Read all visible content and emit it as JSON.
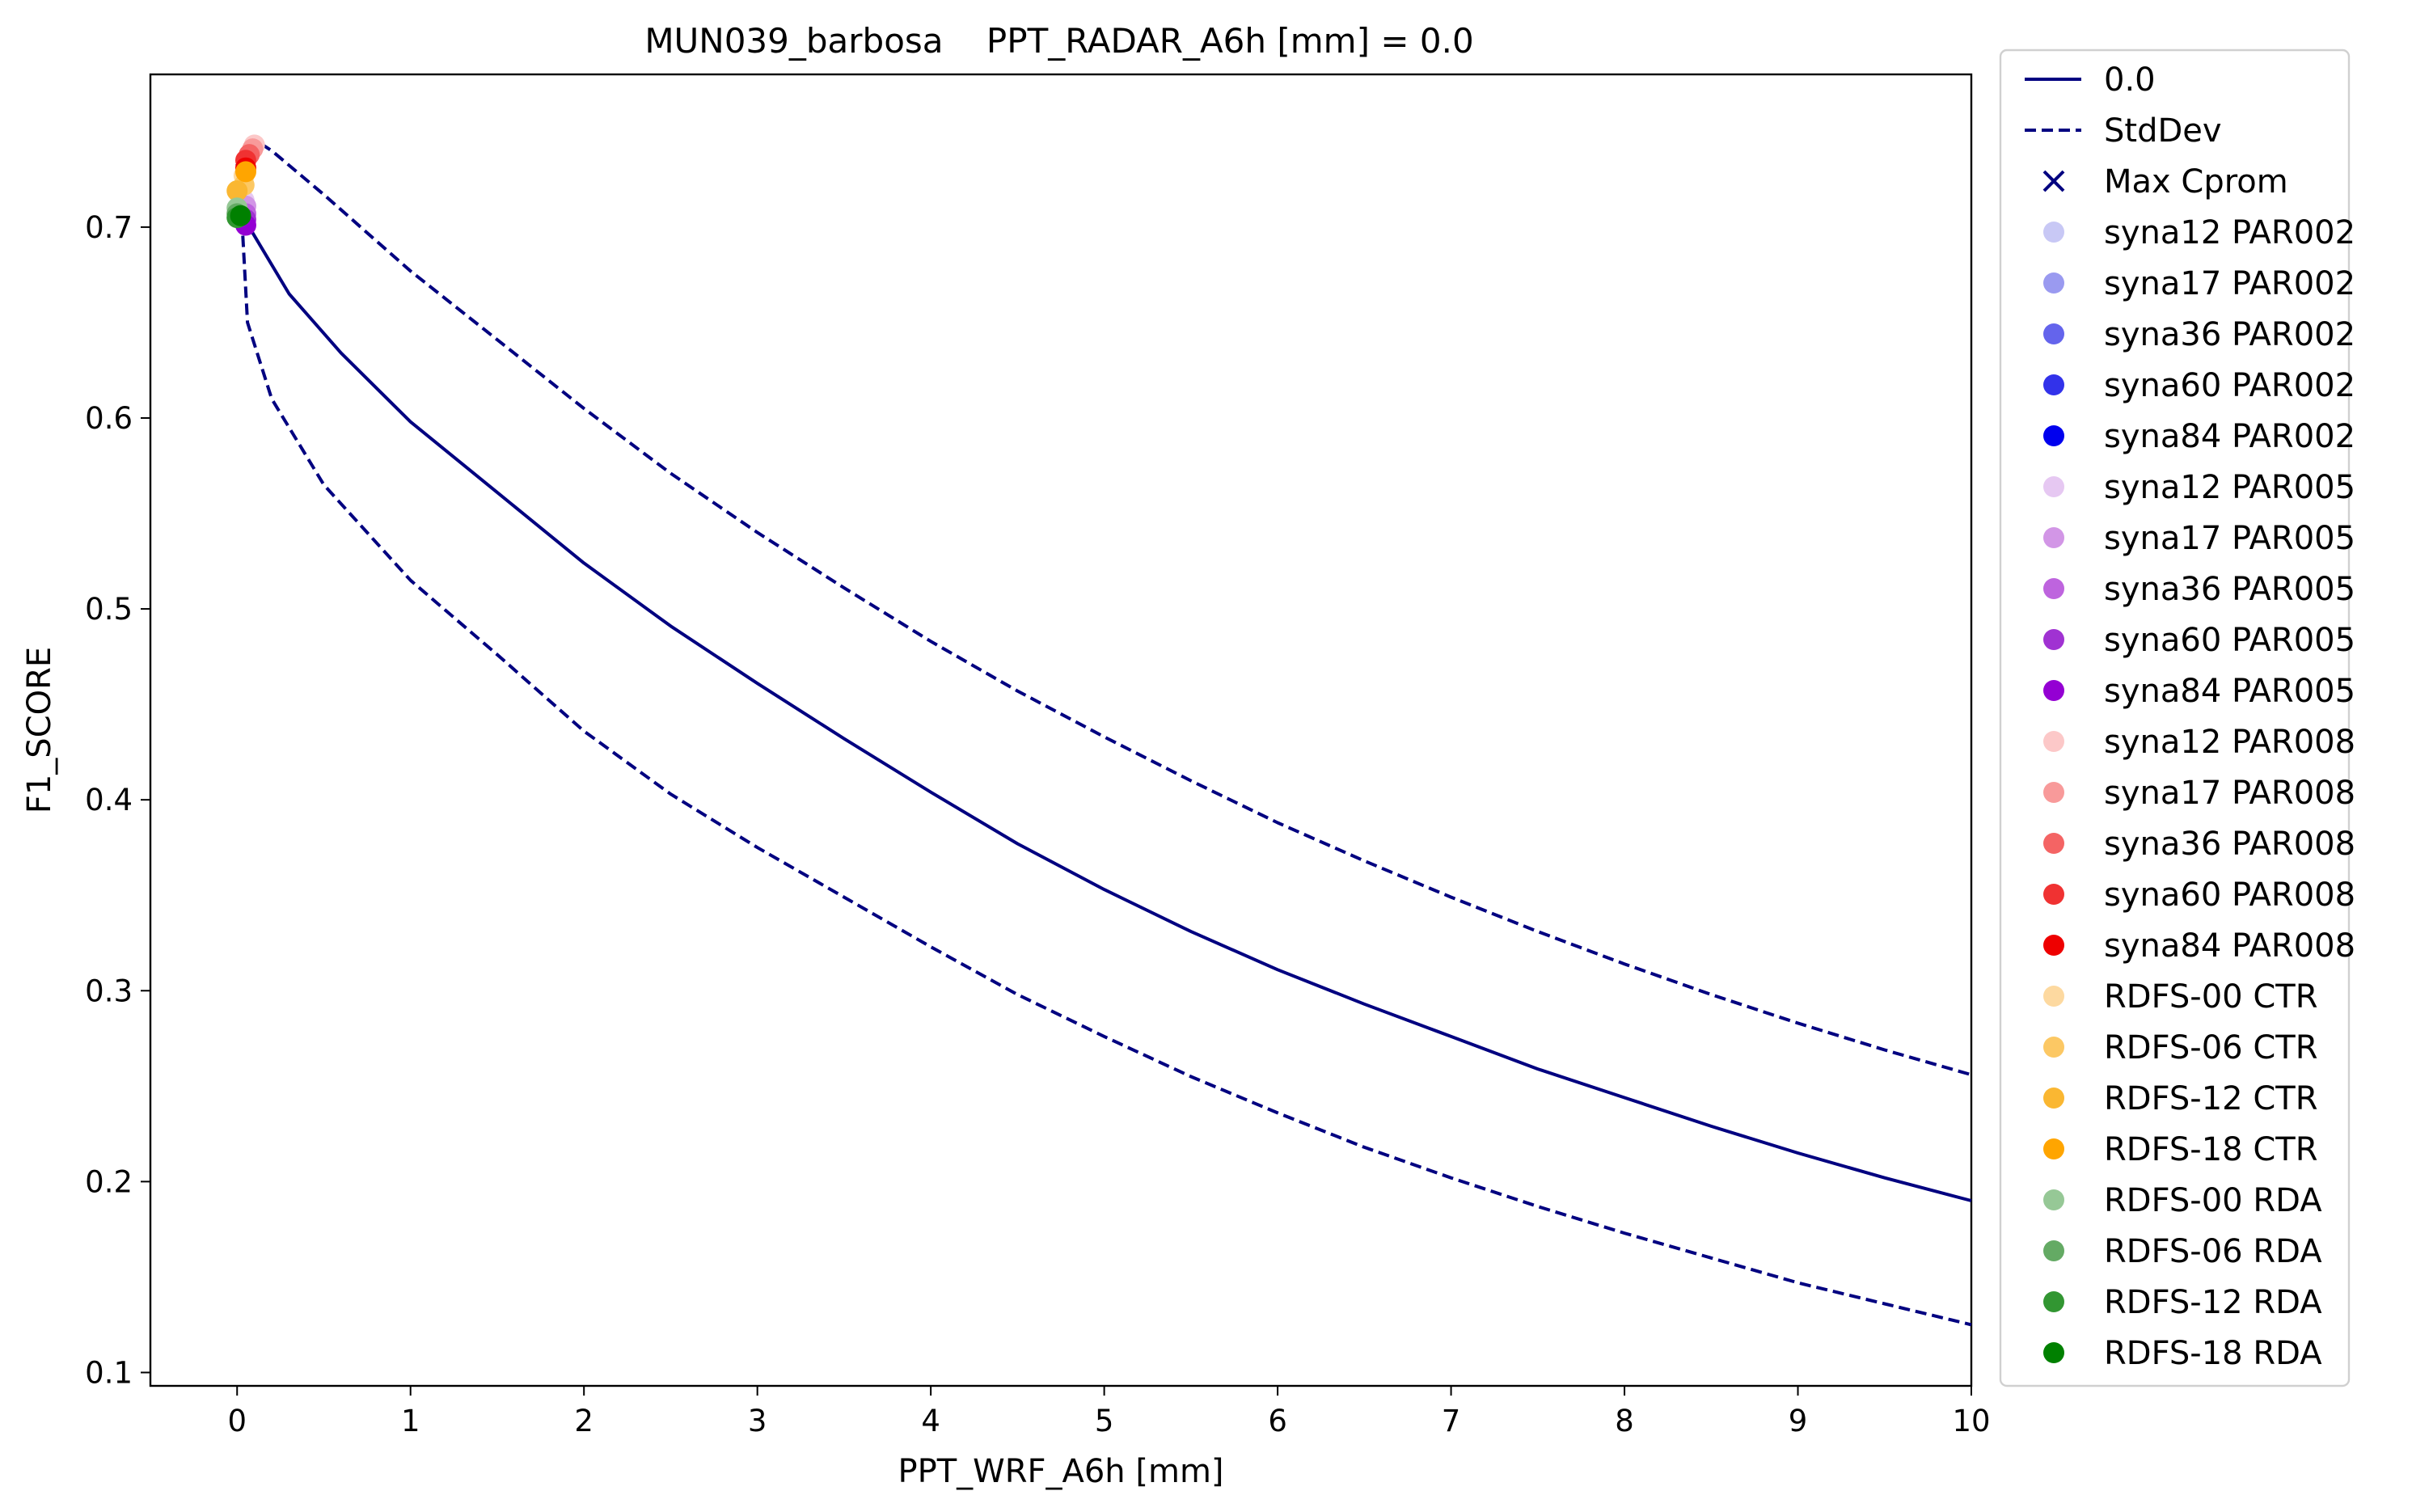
{
  "chart_data": {
    "type": "line",
    "title": "MUN039_barbosa    PPT_RADAR_A6h [mm] = 0.0",
    "xlabel": "PPT_WRF_A6h [mm]",
    "ylabel": "F1_SCORE",
    "xlim": [
      -0.5,
      10
    ],
    "ylim": [
      0.093,
      0.78
    ],
    "xticks": [
      "0",
      "1",
      "2",
      "3",
      "4",
      "5",
      "6",
      "7",
      "8",
      "9",
      "10"
    ],
    "yticks": [
      "0.1",
      "0.2",
      "0.3",
      "0.4",
      "0.5",
      "0.6",
      "0.7"
    ],
    "grid": false,
    "legend_position": "outside-right",
    "series": [
      {
        "name": "0.0",
        "style": "solid",
        "color": "#000080",
        "x": [
          0.0,
          0.05,
          0.3,
          0.6,
          1.0,
          1.5,
          2.0,
          2.5,
          3.0,
          3.5,
          4.0,
          4.5,
          5.0,
          5.5,
          6.0,
          6.5,
          7.0,
          7.5,
          8.0,
          8.5,
          9.0,
          9.5,
          10.0
        ],
        "y": [
          0.733,
          0.703,
          0.665,
          0.634,
          0.598,
          0.561,
          0.524,
          0.491,
          0.461,
          0.432,
          0.404,
          0.377,
          0.353,
          0.331,
          0.311,
          0.293,
          0.276,
          0.259,
          0.244,
          0.229,
          0.215,
          0.202,
          0.19
        ]
      },
      {
        "name": "StdDev",
        "style": "dashed",
        "color": "#000080",
        "x": [
          0.03,
          0.05,
          0.08,
          0.2,
          0.5,
          1.0,
          1.5,
          2.0,
          2.5,
          3.0,
          3.5,
          4.0,
          4.5,
          5.0,
          5.5,
          6.0,
          6.5,
          7.0,
          7.5,
          8.0,
          8.5,
          9.0,
          9.5,
          10.0
        ],
        "y": [
          0.71,
          0.745,
          0.747,
          0.74,
          0.717,
          0.677,
          0.641,
          0.605,
          0.571,
          0.54,
          0.511,
          0.483,
          0.457,
          0.433,
          0.41,
          0.388,
          0.368,
          0.349,
          0.331,
          0.314,
          0.298,
          0.283,
          0.269,
          0.256
        ]
      },
      {
        "name": "",
        "style": "dashed",
        "color": "#000080",
        "x": [
          0.0,
          0.03,
          0.06,
          0.2,
          0.5,
          1.0,
          1.5,
          2.0,
          2.5,
          3.0,
          3.5,
          4.0,
          4.5,
          5.0,
          5.5,
          6.0,
          6.5,
          7.0,
          7.5,
          8.0,
          8.5,
          9.0,
          9.5,
          10.0
        ],
        "y": [
          0.713,
          0.7,
          0.65,
          0.61,
          0.565,
          0.515,
          0.476,
          0.436,
          0.403,
          0.375,
          0.349,
          0.323,
          0.298,
          0.276,
          0.255,
          0.236,
          0.218,
          0.202,
          0.187,
          0.173,
          0.16,
          0.147,
          0.136,
          0.125
        ]
      }
    ],
    "scatter_points": [
      {
        "label": "syna12 PAR002",
        "color": "#c8c8f5",
        "x": 0.03,
        "y": 0.712
      },
      {
        "label": "syna17 PAR002",
        "color": "#9a9af0",
        "x": 0.04,
        "y": 0.708
      },
      {
        "label": "syna36 PAR002",
        "color": "#6464ec",
        "x": 0.03,
        "y": 0.706
      },
      {
        "label": "syna60 PAR002",
        "color": "#3232ea",
        "x": 0.04,
        "y": 0.704
      },
      {
        "label": "syna84 PAR002",
        "color": "#0000ee",
        "x": 0.04,
        "y": 0.703
      },
      {
        "label": "syna12 PAR005",
        "color": "#e6c8f2",
        "x": 0.04,
        "y": 0.714
      },
      {
        "label": "syna17 PAR005",
        "color": "#d296e6",
        "x": 0.05,
        "y": 0.711
      },
      {
        "label": "syna36 PAR005",
        "color": "#be64de",
        "x": 0.05,
        "y": 0.707
      },
      {
        "label": "syna60 PAR005",
        "color": "#a032d2",
        "x": 0.05,
        "y": 0.704
      },
      {
        "label": "syna84 PAR005",
        "color": "#9400d3",
        "x": 0.05,
        "y": 0.701
      },
      {
        "label": "syna12 PAR008",
        "color": "#fcc8c8",
        "x": 0.1,
        "y": 0.743
      },
      {
        "label": "syna17 PAR008",
        "color": "#f89a9a",
        "x": 0.09,
        "y": 0.741
      },
      {
        "label": "syna36 PAR008",
        "color": "#f46464",
        "x": 0.07,
        "y": 0.738
      },
      {
        "label": "syna60 PAR008",
        "color": "#f03232",
        "x": 0.05,
        "y": 0.735
      },
      {
        "label": "syna84 PAR008",
        "color": "#ee0000",
        "x": 0.05,
        "y": 0.731
      },
      {
        "label": "RDFS-00 CTR",
        "color": "#fdd9a0",
        "x": 0.04,
        "y": 0.727
      },
      {
        "label": "RDFS-06 CTR",
        "color": "#fcc864",
        "x": 0.04,
        "y": 0.722
      },
      {
        "label": "RDFS-12 CTR",
        "color": "#fab732",
        "x": 0.0,
        "y": 0.719
      },
      {
        "label": "RDFS-18 CTR",
        "color": "#ffa500",
        "x": 0.05,
        "y": 0.729
      },
      {
        "label": "RDFS-00 RDA",
        "color": "#96c896",
        "x": 0.0,
        "y": 0.71
      },
      {
        "label": "RDFS-06 RDA",
        "color": "#64aa64",
        "x": 0.0,
        "y": 0.707
      },
      {
        "label": "RDFS-12 RDA",
        "color": "#329632",
        "x": 0.0,
        "y": 0.705
      },
      {
        "label": "RDFS-18 RDA",
        "color": "#008000",
        "x": 0.02,
        "y": 0.706
      }
    ],
    "legend": [
      {
        "label": "0.0",
        "kind": "solid-line",
        "color": "#000080"
      },
      {
        "label": "StdDev",
        "kind": "dashed-line",
        "color": "#000080"
      },
      {
        "label": "Max Cprom",
        "kind": "x-marker",
        "color": "#000080"
      },
      {
        "label": "syna12 PAR002",
        "kind": "dot",
        "color": "#c8c8f5"
      },
      {
        "label": "syna17 PAR002",
        "kind": "dot",
        "color": "#9a9af0"
      },
      {
        "label": "syna36 PAR002",
        "kind": "dot",
        "color": "#6464ec"
      },
      {
        "label": "syna60 PAR002",
        "kind": "dot",
        "color": "#3232ea"
      },
      {
        "label": "syna84 PAR002",
        "kind": "dot",
        "color": "#0000ee"
      },
      {
        "label": "syna12 PAR005",
        "kind": "dot",
        "color": "#e6c8f2"
      },
      {
        "label": "syna17 PAR005",
        "kind": "dot",
        "color": "#d296e6"
      },
      {
        "label": "syna36 PAR005",
        "kind": "dot",
        "color": "#be64de"
      },
      {
        "label": "syna60 PAR005",
        "kind": "dot",
        "color": "#a032d2"
      },
      {
        "label": "syna84 PAR005",
        "kind": "dot",
        "color": "#9400d3"
      },
      {
        "label": "syna12 PAR008",
        "kind": "dot",
        "color": "#fcc8c8"
      },
      {
        "label": "syna17 PAR008",
        "kind": "dot",
        "color": "#f89a9a"
      },
      {
        "label": "syna36 PAR008",
        "kind": "dot",
        "color": "#f46464"
      },
      {
        "label": "syna60 PAR008",
        "kind": "dot",
        "color": "#f03232"
      },
      {
        "label": "syna84 PAR008",
        "kind": "dot",
        "color": "#ee0000"
      },
      {
        "label": " RDFS-00 CTR",
        "kind": "dot",
        "color": "#fdd9a0"
      },
      {
        "label": " RDFS-06 CTR",
        "kind": "dot",
        "color": "#fcc864"
      },
      {
        "label": " RDFS-12 CTR",
        "kind": "dot",
        "color": "#fab732"
      },
      {
        "label": " RDFS-18 CTR",
        "kind": "dot",
        "color": "#ffa500"
      },
      {
        "label": " RDFS-00 RDA",
        "kind": "dot",
        "color": "#96c896"
      },
      {
        "label": " RDFS-06 RDA",
        "kind": "dot",
        "color": "#64aa64"
      },
      {
        "label": " RDFS-12 RDA",
        "kind": "dot",
        "color": "#329632"
      },
      {
        "label": " RDFS-18 RDA",
        "kind": "dot",
        "color": "#008000"
      }
    ]
  }
}
